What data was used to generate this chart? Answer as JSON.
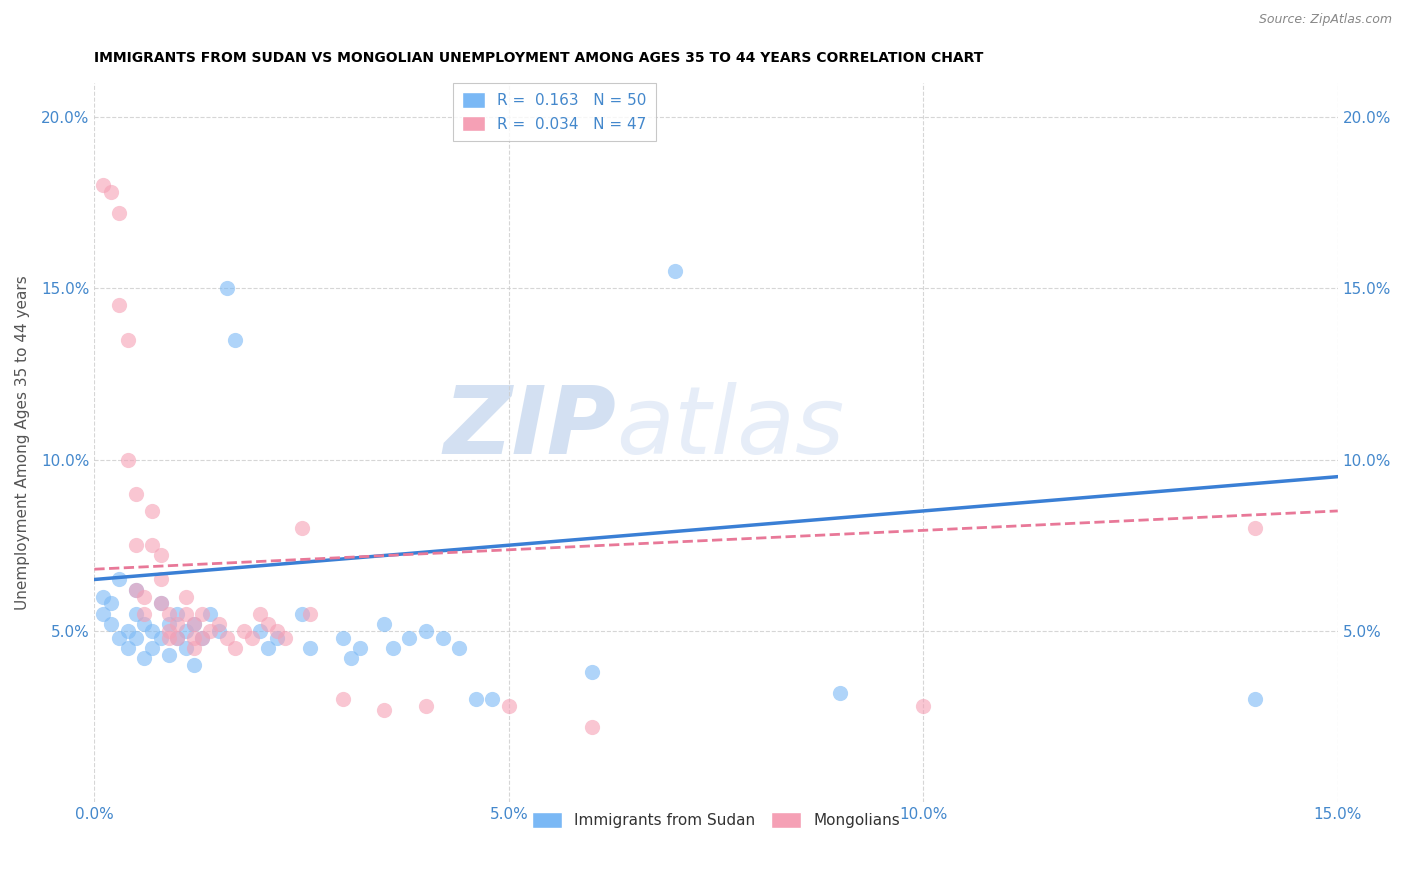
{
  "title": "IMMIGRANTS FROM SUDAN VS MONGOLIAN UNEMPLOYMENT AMONG AGES 35 TO 44 YEARS CORRELATION CHART",
  "source": "Source: ZipAtlas.com",
  "ylabel": "Unemployment Among Ages 35 to 44 years",
  "xlim": [
    0.0,
    0.15
  ],
  "ylim": [
    0.0,
    0.21
  ],
  "x_ticks": [
    0.0,
    0.05,
    0.1,
    0.15
  ],
  "x_tick_labels": [
    "0.0%",
    "5.0%",
    "10.0%",
    "15.0%"
  ],
  "y_ticks": [
    0.05,
    0.1,
    0.15,
    0.2
  ],
  "y_tick_labels": [
    "5.0%",
    "10.0%",
    "15.0%",
    "20.0%"
  ],
  "sudan_color": "#7ab8f5",
  "mongolia_color": "#f5a0b5",
  "sudan_line_color": "#3a7fd5",
  "mongolia_line_color": "#e87898",
  "watermark_zip": "ZIP",
  "watermark_atlas": "atlas",
  "sudan_scatter": [
    [
      0.001,
      0.06
    ],
    [
      0.001,
      0.055
    ],
    [
      0.002,
      0.058
    ],
    [
      0.002,
      0.052
    ],
    [
      0.003,
      0.065
    ],
    [
      0.003,
      0.048
    ],
    [
      0.004,
      0.05
    ],
    [
      0.004,
      0.045
    ],
    [
      0.005,
      0.062
    ],
    [
      0.005,
      0.055
    ],
    [
      0.005,
      0.048
    ],
    [
      0.006,
      0.052
    ],
    [
      0.006,
      0.042
    ],
    [
      0.007,
      0.05
    ],
    [
      0.007,
      0.045
    ],
    [
      0.008,
      0.058
    ],
    [
      0.008,
      0.048
    ],
    [
      0.009,
      0.052
    ],
    [
      0.009,
      0.043
    ],
    [
      0.01,
      0.055
    ],
    [
      0.01,
      0.048
    ],
    [
      0.011,
      0.05
    ],
    [
      0.011,
      0.045
    ],
    [
      0.012,
      0.052
    ],
    [
      0.012,
      0.04
    ],
    [
      0.013,
      0.048
    ],
    [
      0.014,
      0.055
    ],
    [
      0.015,
      0.05
    ],
    [
      0.016,
      0.15
    ],
    [
      0.017,
      0.135
    ],
    [
      0.02,
      0.05
    ],
    [
      0.021,
      0.045
    ],
    [
      0.022,
      0.048
    ],
    [
      0.025,
      0.055
    ],
    [
      0.026,
      0.045
    ],
    [
      0.03,
      0.048
    ],
    [
      0.031,
      0.042
    ],
    [
      0.032,
      0.045
    ],
    [
      0.035,
      0.052
    ],
    [
      0.036,
      0.045
    ],
    [
      0.038,
      0.048
    ],
    [
      0.04,
      0.05
    ],
    [
      0.042,
      0.048
    ],
    [
      0.044,
      0.045
    ],
    [
      0.046,
      0.03
    ],
    [
      0.048,
      0.03
    ],
    [
      0.06,
      0.038
    ],
    [
      0.07,
      0.155
    ],
    [
      0.09,
      0.032
    ],
    [
      0.14,
      0.03
    ]
  ],
  "mongolia_scatter": [
    [
      0.001,
      0.18
    ],
    [
      0.002,
      0.178
    ],
    [
      0.003,
      0.172
    ],
    [
      0.003,
      0.145
    ],
    [
      0.004,
      0.135
    ],
    [
      0.004,
      0.1
    ],
    [
      0.005,
      0.09
    ],
    [
      0.005,
      0.075
    ],
    [
      0.005,
      0.062
    ],
    [
      0.006,
      0.06
    ],
    [
      0.006,
      0.055
    ],
    [
      0.007,
      0.085
    ],
    [
      0.007,
      0.075
    ],
    [
      0.008,
      0.072
    ],
    [
      0.008,
      0.065
    ],
    [
      0.008,
      0.058
    ],
    [
      0.009,
      0.055
    ],
    [
      0.009,
      0.05
    ],
    [
      0.009,
      0.048
    ],
    [
      0.01,
      0.052
    ],
    [
      0.01,
      0.048
    ],
    [
      0.011,
      0.06
    ],
    [
      0.011,
      0.055
    ],
    [
      0.012,
      0.052
    ],
    [
      0.012,
      0.048
    ],
    [
      0.012,
      0.045
    ],
    [
      0.013,
      0.055
    ],
    [
      0.013,
      0.048
    ],
    [
      0.014,
      0.05
    ],
    [
      0.015,
      0.052
    ],
    [
      0.016,
      0.048
    ],
    [
      0.017,
      0.045
    ],
    [
      0.018,
      0.05
    ],
    [
      0.019,
      0.048
    ],
    [
      0.02,
      0.055
    ],
    [
      0.021,
      0.052
    ],
    [
      0.022,
      0.05
    ],
    [
      0.023,
      0.048
    ],
    [
      0.025,
      0.08
    ],
    [
      0.026,
      0.055
    ],
    [
      0.03,
      0.03
    ],
    [
      0.035,
      0.027
    ],
    [
      0.04,
      0.028
    ],
    [
      0.05,
      0.028
    ],
    [
      0.06,
      0.022
    ],
    [
      0.1,
      0.028
    ],
    [
      0.14,
      0.08
    ]
  ]
}
